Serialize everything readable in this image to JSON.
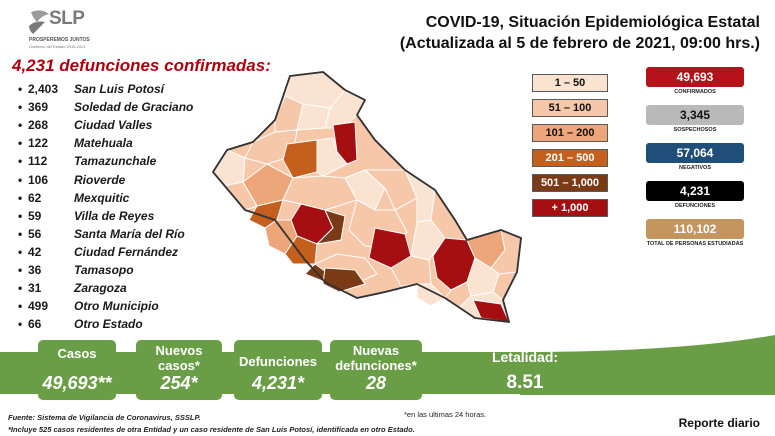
{
  "logo": {
    "text": "SLP",
    "sub1": "PROSPEREMOS JUNTOS",
    "sub2": "Gobierno del Estado 2015-2021"
  },
  "header": {
    "title_line1": "COVID-19, Situación Epidemiológica Estatal",
    "title_line2": "(Actualizada al 5 de febrero de 2021, 09:00 hrs.)"
  },
  "deaths": {
    "title": "4,231 defunciones confirmadas:",
    "items": [
      {
        "count": "2,403",
        "name": "San Luis Potosí"
      },
      {
        "count": "369",
        "name": "Soledad de Graciano"
      },
      {
        "count": "268",
        "name": "Ciudad Valles"
      },
      {
        "count": "122",
        "name": "Matehuala"
      },
      {
        "count": "112",
        "name": "Tamazunchale"
      },
      {
        "count": "106",
        "name": "Rioverde"
      },
      {
        "count": "62",
        "name": "Mexquitic"
      },
      {
        "count": "59",
        "name": "Villa de Reyes"
      },
      {
        "count": "56",
        "name": "Santa María del Río"
      },
      {
        "count": "42",
        "name": "Ciudad Fernández"
      },
      {
        "count": "36",
        "name": "Tamasopo"
      },
      {
        "count": "31",
        "name": "Zaragoza"
      },
      {
        "count": "499",
        "name": "Otro Municipio"
      },
      {
        "count": "66",
        "name": "Otro Estado"
      }
    ]
  },
  "legend": [
    {
      "label": "1 – 50",
      "color": "#fbe3d2",
      "text_color": "#111111"
    },
    {
      "label": "51 – 100",
      "color": "#f6c7a8",
      "text_color": "#111111"
    },
    {
      "label": "101 – 200",
      "color": "#eda57a",
      "text_color": "#111111"
    },
    {
      "label": "201 – 500",
      "color": "#c45f1e",
      "text_color": "#ffffff"
    },
    {
      "label": "501 – 1,000",
      "color": "#7b3a16",
      "text_color": "#ffffff"
    },
    {
      "label": "+ 1,000",
      "color": "#a60f12",
      "text_color": "#ffffff"
    }
  ],
  "stats": [
    {
      "value": "49,693",
      "label": "CONFIRMADOS",
      "color": "#b5121b",
      "text_color": "#ffffff"
    },
    {
      "value": "3,345",
      "label": "SOSPECHOSOS",
      "color": "#b9b9b9",
      "text_color": "#111111"
    },
    {
      "value": "57,064",
      "label": "NEGATIVOS",
      "color": "#1f4e79",
      "text_color": "#ffffff"
    },
    {
      "value": "4,231",
      "label": "DEFUNCIONES",
      "color": "#000000",
      "text_color": "#ffffff"
    },
    {
      "value": "110,102",
      "label": "TOTAL DE PERSONAS ESTUDIADAS",
      "color": "#c4955e",
      "text_color": "#ffffff"
    }
  ],
  "summary": {
    "cases_label": "Casos",
    "cases_value": "49,693**",
    "new_cases_label": "Nuevos casos*",
    "new_cases_value": "254*",
    "deaths_label": "Defunciones",
    "deaths_value": "4,231*",
    "new_deaths_label": "Nuevas defunciones*",
    "new_deaths_value": "28",
    "lethality_label": "Letalidad:",
    "lethality_value": "8.51"
  },
  "footer": {
    "source": "Fuente: Sistema de Vigilancia de Coronavirus, SSSLP.",
    "note": "*Incluye 525 casos residentes de otra Entidad y un caso residente de San Luis Potosí, identificada en otro Estado.",
    "last24": "*en las ultimas 24 horas.",
    "report": "Reporte diario"
  },
  "colors": {
    "accent_red": "#b00010",
    "strip_green": "#6a9e46"
  }
}
